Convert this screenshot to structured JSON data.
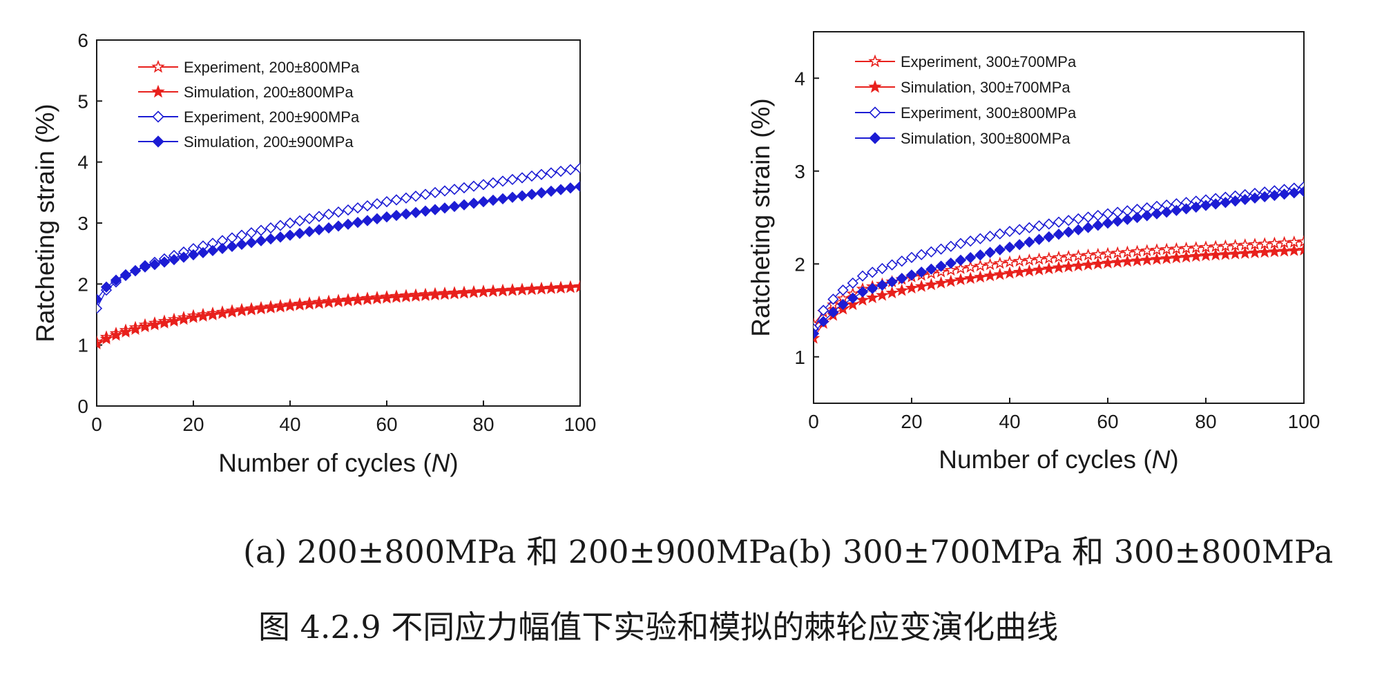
{
  "chart_data": [
    {
      "type": "line",
      "panel": "a",
      "xlabel_prefix": "Number of cycles (",
      "xlabel_var": "N",
      "xlabel_suffix": ")",
      "ylabel": "Ratcheting strain (%)",
      "xlim": [
        0,
        100
      ],
      "ylim": [
        0,
        6
      ],
      "xticks": [
        0,
        20,
        40,
        60,
        80,
        100
      ],
      "yticks": [
        0,
        1,
        2,
        3,
        4,
        5,
        6
      ],
      "legend_position": "top-left",
      "grid": false,
      "series": [
        {
          "name": "Experiment, 200±800MPa",
          "marker": "star",
          "fill": "open",
          "color": "#e8201c",
          "x": [
            0,
            2,
            5,
            10,
            20,
            30,
            40,
            50,
            60,
            70,
            80,
            90,
            100
          ],
          "y": [
            1.05,
            1.13,
            1.22,
            1.33,
            1.48,
            1.58,
            1.66,
            1.73,
            1.79,
            1.84,
            1.88,
            1.92,
            1.96
          ]
        },
        {
          "name": "Simulation,  200±800MPa",
          "marker": "star",
          "fill": "solid",
          "color": "#e8201c",
          "x": [
            0,
            2,
            5,
            10,
            20,
            30,
            40,
            50,
            60,
            70,
            80,
            90,
            100
          ],
          "y": [
            1.02,
            1.1,
            1.19,
            1.3,
            1.45,
            1.56,
            1.64,
            1.71,
            1.77,
            1.82,
            1.87,
            1.91,
            1.95
          ]
        },
        {
          "name": "Experiment, 200±900MPa",
          "marker": "diamond",
          "fill": "open",
          "color": "#1c1cd4",
          "x": [
            0,
            2,
            5,
            10,
            20,
            30,
            40,
            50,
            60,
            70,
            80,
            90,
            100
          ],
          "y": [
            1.6,
            1.9,
            2.1,
            2.3,
            2.58,
            2.8,
            3.0,
            3.18,
            3.35,
            3.5,
            3.63,
            3.77,
            3.9
          ]
        },
        {
          "name": "Simulation,  200±900MPa",
          "marker": "diamond",
          "fill": "solid",
          "color": "#1c1cd4",
          "x": [
            0,
            2,
            5,
            10,
            20,
            30,
            40,
            50,
            60,
            70,
            80,
            90,
            100
          ],
          "y": [
            1.75,
            1.95,
            2.12,
            2.28,
            2.48,
            2.65,
            2.8,
            2.95,
            3.1,
            3.22,
            3.35,
            3.47,
            3.6
          ]
        }
      ]
    },
    {
      "type": "line",
      "panel": "b",
      "xlabel_prefix": "Number of cycles (",
      "xlabel_var": "N",
      "xlabel_suffix": ")",
      "ylabel": "Ratcheting strain (%)",
      "xlim": [
        0,
        100
      ],
      "ylim": [
        0.5,
        4.5
      ],
      "xticks": [
        0,
        20,
        40,
        60,
        80,
        100
      ],
      "yticks": [
        1,
        2,
        3,
        4
      ],
      "legend_position": "top-left",
      "grid": false,
      "series": [
        {
          "name": "Experiment, 300±700MPa",
          "marker": "star",
          "fill": "open",
          "color": "#e8201c",
          "x": [
            0,
            2,
            5,
            10,
            20,
            30,
            40,
            50,
            60,
            70,
            80,
            90,
            100
          ],
          "y": [
            1.35,
            1.48,
            1.6,
            1.73,
            1.86,
            1.95,
            2.02,
            2.07,
            2.11,
            2.15,
            2.18,
            2.21,
            2.24
          ]
        },
        {
          "name": "Simulation,  300±700MPa",
          "marker": "star",
          "fill": "solid",
          "color": "#e8201c",
          "x": [
            0,
            2,
            5,
            10,
            20,
            30,
            40,
            50,
            60,
            70,
            80,
            90,
            100
          ],
          "y": [
            1.2,
            1.36,
            1.49,
            1.61,
            1.74,
            1.83,
            1.9,
            1.96,
            2.01,
            2.05,
            2.09,
            2.12,
            2.15
          ]
        },
        {
          "name": "Experiment, 300±800MPa",
          "marker": "diamond",
          "fill": "open",
          "color": "#1c1cd4",
          "x": [
            0,
            2,
            5,
            10,
            20,
            30,
            40,
            50,
            60,
            70,
            80,
            90,
            100
          ],
          "y": [
            1.3,
            1.5,
            1.68,
            1.87,
            2.07,
            2.22,
            2.35,
            2.45,
            2.54,
            2.62,
            2.69,
            2.76,
            2.83
          ]
        },
        {
          "name": "Simulation,  300±800MPa",
          "marker": "diamond",
          "fill": "solid",
          "color": "#1c1cd4",
          "x": [
            0,
            2,
            5,
            10,
            20,
            30,
            40,
            50,
            60,
            70,
            80,
            90,
            100
          ],
          "y": [
            1.25,
            1.38,
            1.53,
            1.7,
            1.88,
            2.04,
            2.18,
            2.32,
            2.44,
            2.54,
            2.63,
            2.71,
            2.78
          ]
        }
      ]
    }
  ],
  "captions": {
    "subcaption_a": "(a) 200±800MPa 和 200±900MPa",
    "subcaption_b": "(b) 300±700MPa 和 300±800MPa",
    "figure_caption": "图 4.2.9  不同应力幅值下实验和模拟的棘轮应变演化曲线"
  }
}
